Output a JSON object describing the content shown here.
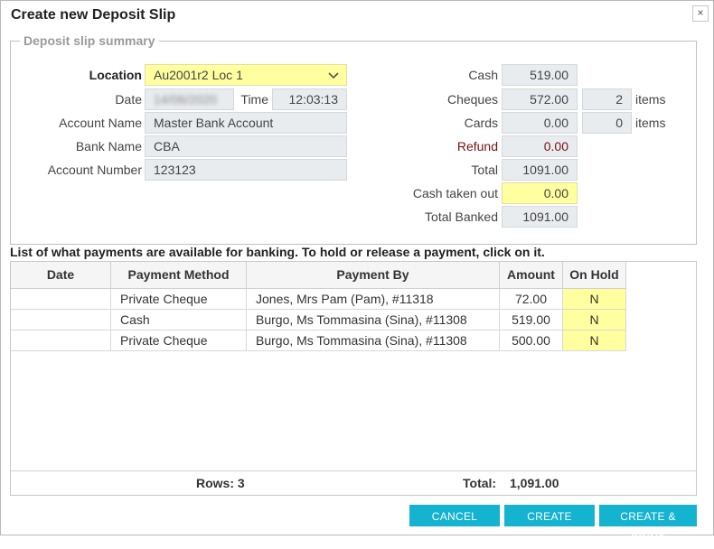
{
  "dialog": {
    "title": "Create new Deposit Slip",
    "close_glyph": "×"
  },
  "summary": {
    "legend": "Deposit slip summary",
    "left": {
      "location_label": "Location",
      "location_value": "Au2001r2 Loc 1",
      "date_label": "Date",
      "date_value": "14/06/2020",
      "time_label": "Time",
      "time_value": "12:03:13",
      "account_name_label": "Account Name",
      "account_name_value": "Master Bank Account",
      "bank_name_label": "Bank Name",
      "bank_name_value": "CBA",
      "account_number_label": "Account Number",
      "account_number_value": "123123"
    },
    "right": {
      "cash_label": "Cash",
      "cash_value": "519.00",
      "cheques_label": "Cheques",
      "cheques_value": "572.00",
      "cheques_count": "2",
      "cheques_items": "items",
      "cards_label": "Cards",
      "cards_value": "0.00",
      "cards_count": "0",
      "cards_items": "items",
      "refund_label": "Refund",
      "refund_value": "0.00",
      "total_label": "Total",
      "total_value": "1091.00",
      "cash_taken_label": "Cash taken out",
      "cash_taken_value": "0.00",
      "total_banked_label": "Total Banked",
      "total_banked_value": "1091.00"
    }
  },
  "payments": {
    "note": "List of what payments are available for banking. To hold or release a payment, click on it.",
    "columns": [
      "Date",
      "Payment Method",
      "Payment By",
      "Amount",
      "On Hold"
    ],
    "rows": [
      {
        "date": "",
        "method": "Private Cheque",
        "by": "Jones, Mrs Pam (Pam), #11318",
        "amount": "72.00",
        "hold": "N"
      },
      {
        "date": "",
        "method": "Cash",
        "by": "Burgo, Ms Tommasina (Sina), #11308",
        "amount": "519.00",
        "hold": "N"
      },
      {
        "date": "",
        "method": "Private Cheque",
        "by": "Burgo, Ms Tommasina (Sina), #11308",
        "amount": "500.00",
        "hold": "N"
      }
    ],
    "footer": {
      "rows_label": "Rows: 3",
      "total_label": "Total:",
      "total_value": "1,091.00"
    }
  },
  "buttons": {
    "cancel": "CANCEL",
    "create": "CREATE",
    "create_print": "CREATE & PRINT"
  },
  "colors": {
    "accent": "#14b3d0",
    "highlight": "#ffffa0",
    "refund": "#7a1010"
  }
}
